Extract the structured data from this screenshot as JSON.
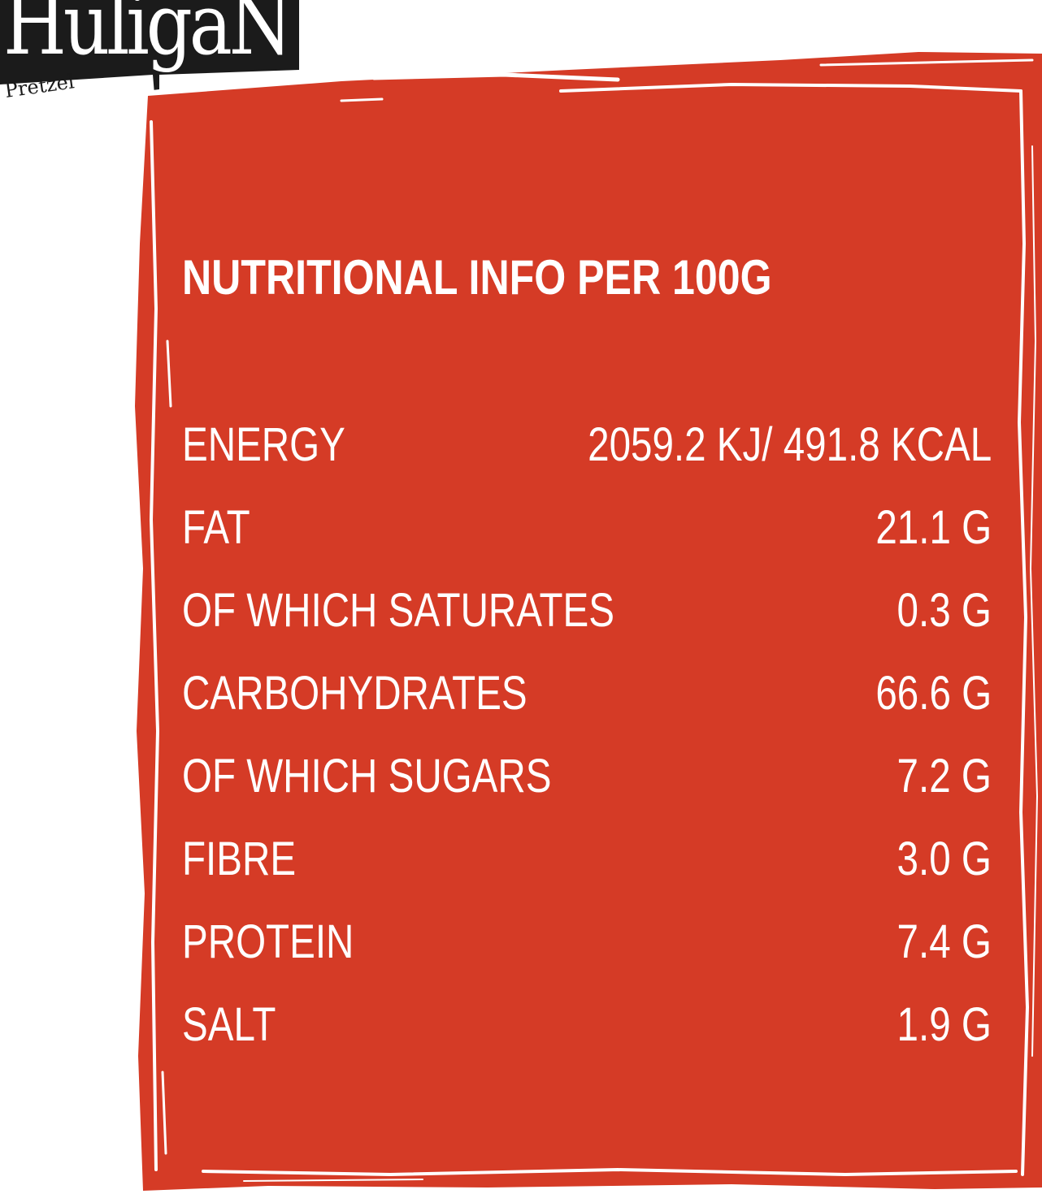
{
  "brand": {
    "name": "HuligaN",
    "tagline": "Pretzel"
  },
  "colors": {
    "panel": "#d53b26",
    "text": "#ffffff",
    "logo_bg": "#1b1b1b"
  },
  "panel": {
    "heading": "NUTRITIONAL INFO PER 100G",
    "rows": [
      {
        "label": "ENERGY",
        "value": "2059.2 KJ/ 491.8 KCAL"
      },
      {
        "label": "FAT",
        "value": "21.1 G"
      },
      {
        "label": "OF WHICH SATURATES",
        "value": "0.3 G"
      },
      {
        "label": "CARBOHYDRATES",
        "value": "66.6 G"
      },
      {
        "label": "OF WHICH SUGARS",
        "value": "7.2 G"
      },
      {
        "label": "FIBRE",
        "value": "3.0 G"
      },
      {
        "label": "PROTEIN",
        "value": "7.4 G"
      },
      {
        "label": "SALT",
        "value": "1.9 G"
      }
    ]
  }
}
